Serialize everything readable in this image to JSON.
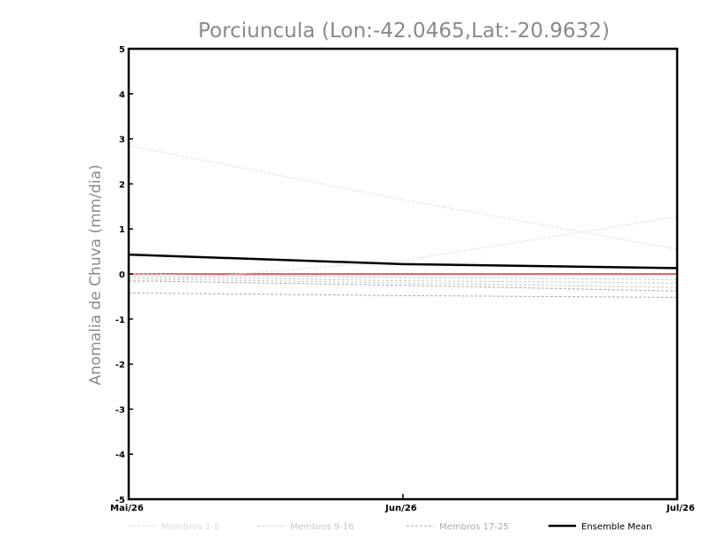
{
  "chart_data": {
    "type": "line",
    "title": "Porciuncula (Lon:-42.0465,Lat:-20.9632)",
    "xlabel": "",
    "ylabel": "Anomalia de Chuva (mm/dia)",
    "ylim": [
      -5,
      5
    ],
    "yticks": [
      "-5",
      "-4",
      "-3",
      "-2",
      "-1",
      "0",
      "1",
      "2",
      "3",
      "4",
      "5"
    ],
    "categories": [
      "Mai/26",
      "Jun/26",
      "Jul/26"
    ],
    "zero_line_color": "#e03030",
    "legend": [
      {
        "label": "Membros 1-8",
        "color": "#dddddd",
        "style": "dashed"
      },
      {
        "label": "Membros 9-16",
        "color": "#c8c8c8",
        "style": "dashed"
      },
      {
        "label": "Membros 17-25",
        "color": "#aaaaaa",
        "style": "dashed"
      },
      {
        "label": "Ensemble Mean",
        "color": "#000000",
        "style": "solid"
      }
    ],
    "series": [
      {
        "group": 0,
        "values": [
          2.85,
          1.65,
          0.55
        ]
      },
      {
        "group": 0,
        "values": [
          -0.2,
          0.3,
          1.27
        ]
      },
      {
        "group": 1,
        "values": [
          -0.05,
          -0.15,
          -0.2
        ]
      },
      {
        "group": 1,
        "values": [
          -0.1,
          -0.2,
          -0.3
        ]
      },
      {
        "group": 2,
        "values": [
          -0.15,
          -0.25,
          -0.38
        ]
      },
      {
        "group": 2,
        "values": [
          -0.42,
          -0.48,
          -0.52
        ]
      },
      {
        "group": 1,
        "values": [
          0.0,
          -0.08,
          -0.12
        ]
      },
      {
        "name": "Ensemble Mean",
        "group": 3,
        "values": [
          0.43,
          0.22,
          0.13
        ]
      }
    ]
  }
}
